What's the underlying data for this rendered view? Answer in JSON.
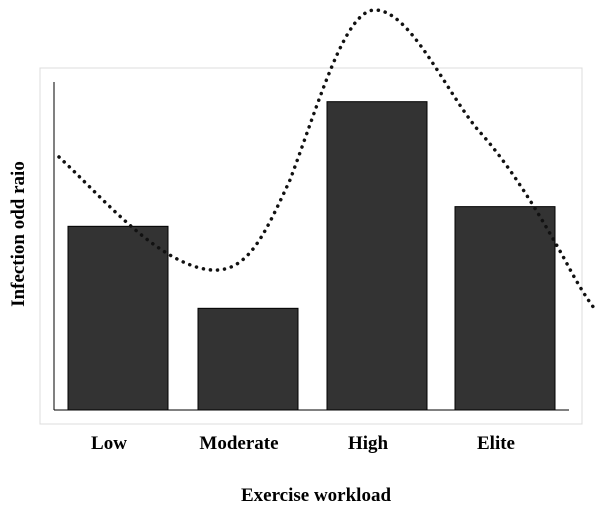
{
  "chart_data": {
    "type": "bar",
    "categories": [
      "Low",
      "Moderate",
      "High",
      "Elite"
    ],
    "values": [
      56,
      31,
      94,
      62
    ],
    "ylim": [
      0,
      100
    ],
    "xlabel": "Exercise workload",
    "ylabel": "Infection odd raio",
    "grid": false,
    "legend": "none",
    "overlay": {
      "type": "line",
      "style": "dotted",
      "note_values": [
        77,
        43,
        122,
        48
      ]
    },
    "colors": {
      "bar_fill": "#333333",
      "bar_stroke": "#000000",
      "axis": "#000000",
      "frame": "#dcdcdc",
      "curve": "#111111"
    }
  }
}
